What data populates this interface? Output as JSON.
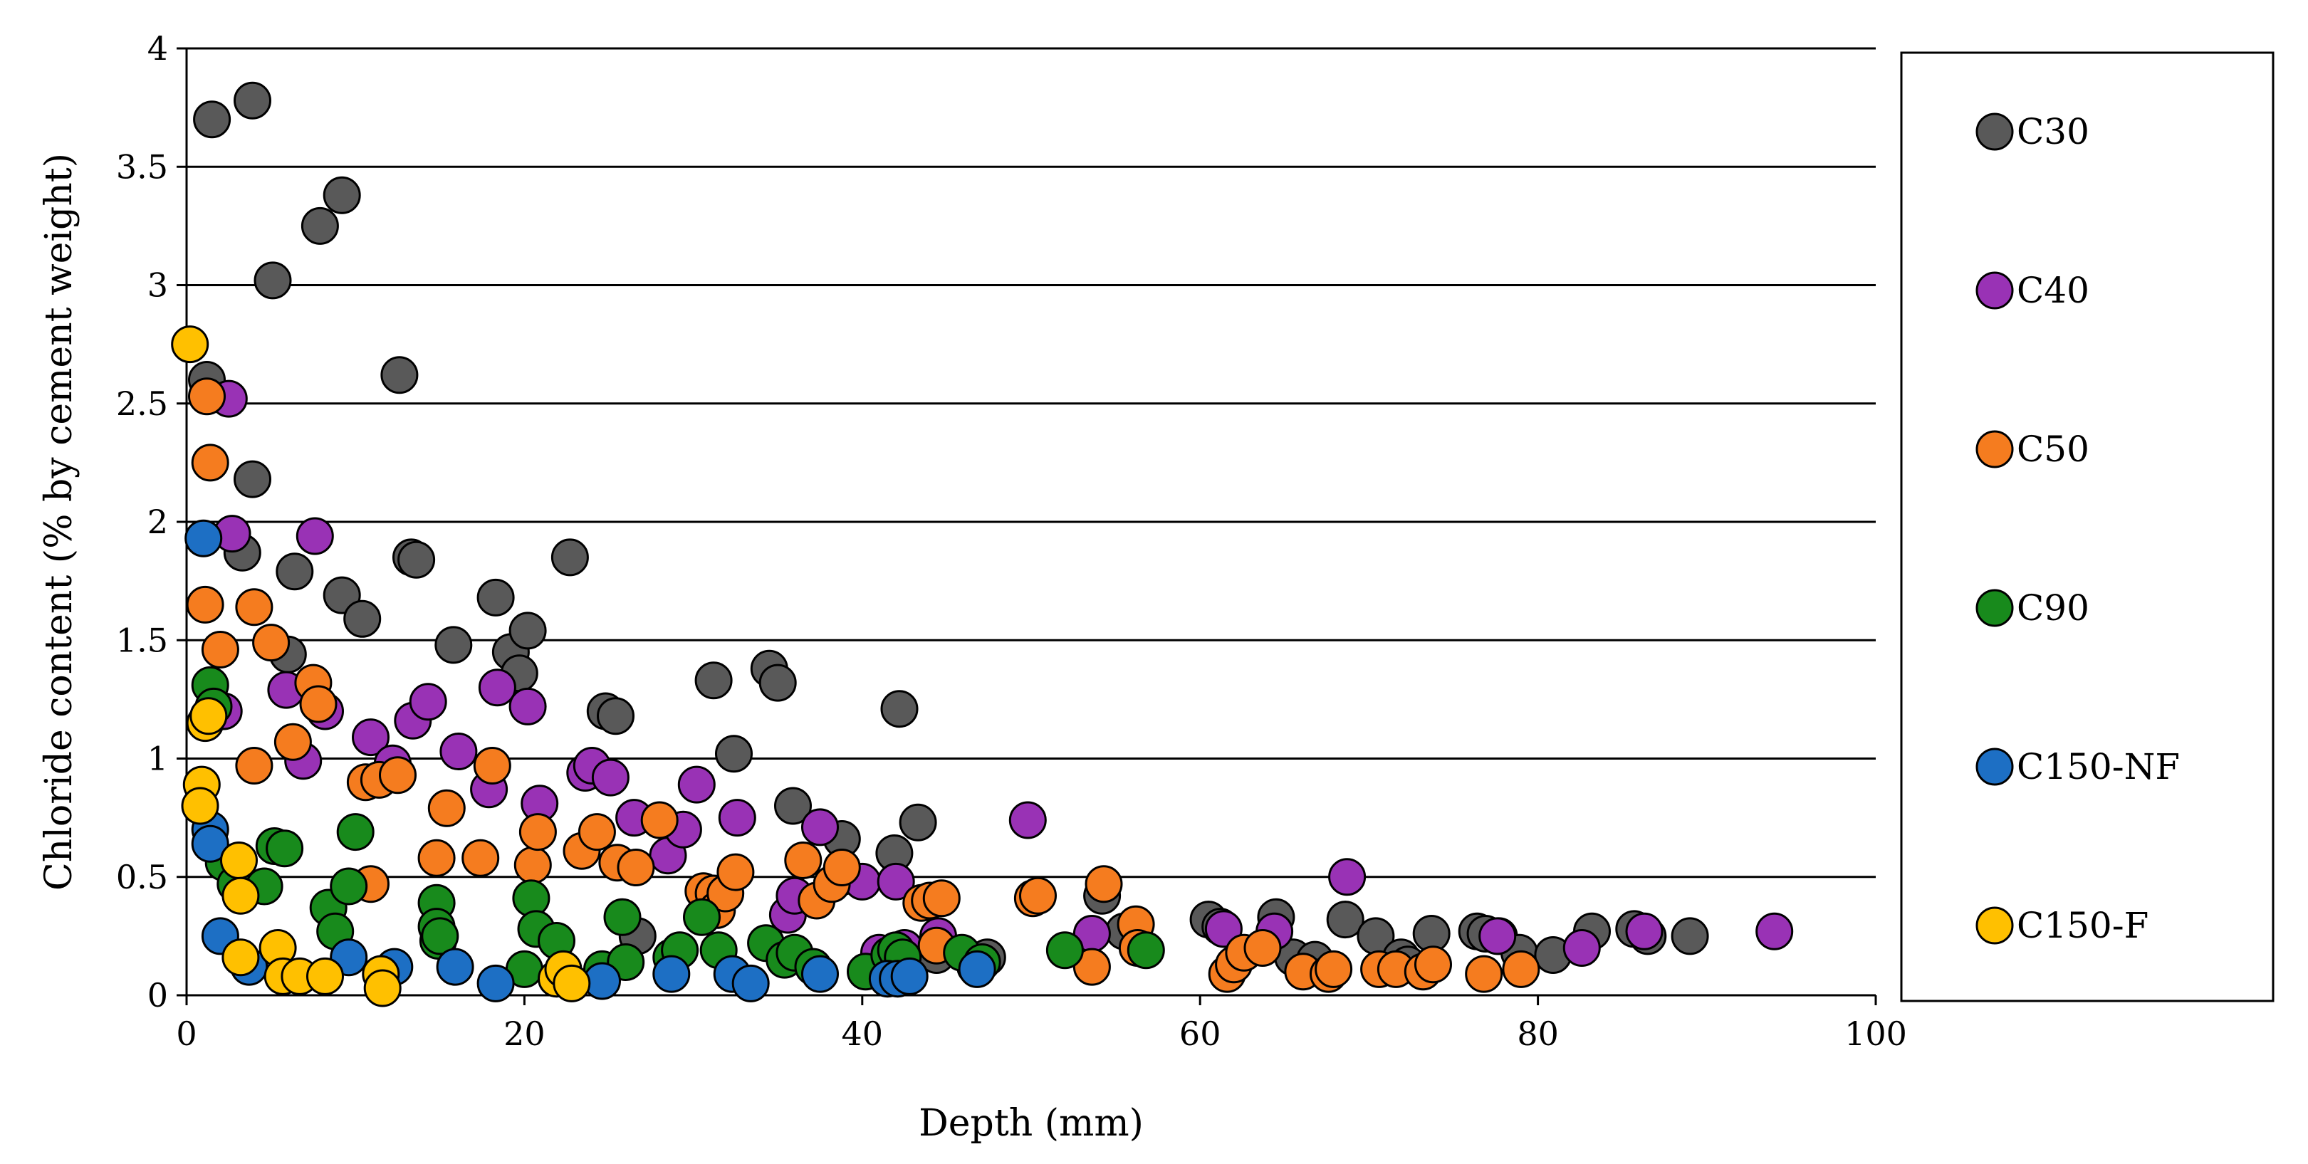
{
  "chart_data": {
    "type": "scatter",
    "title": "",
    "xlabel": "Depth (mm)",
    "ylabel": "Chloride content (% by cement weight)",
    "xlim": [
      0,
      100
    ],
    "ylim": [
      0,
      4
    ],
    "x_ticks": [
      0,
      20,
      40,
      60,
      80,
      100
    ],
    "x_tick_labels": [
      "0",
      "20",
      "40",
      "60",
      "80",
      "100"
    ],
    "y_ticks": [
      0,
      0.5,
      1,
      1.5,
      2,
      2.5,
      3,
      3.5,
      4
    ],
    "y_tick_labels": [
      "0",
      "0.5",
      "1",
      "1.5",
      "2",
      "2.5",
      "3",
      "3.5",
      "4"
    ],
    "grid": "horizontal",
    "legend_position": "right",
    "series": [
      {
        "name": "C30",
        "color": "#595959",
        "points": [
          [
            1.2,
            2.6
          ],
          [
            1.5,
            3.7
          ],
          [
            3.9,
            3.78
          ],
          [
            5.1,
            3.02
          ],
          [
            7.9,
            3.25
          ],
          [
            9.2,
            3.38
          ],
          [
            12.6,
            2.62
          ],
          [
            3.9,
            2.18
          ],
          [
            3.3,
            1.87
          ],
          [
            6.4,
            1.79
          ],
          [
            6.0,
            1.44
          ],
          [
            9.2,
            1.69
          ],
          [
            10.4,
            1.59
          ],
          [
            13.3,
            1.85
          ],
          [
            13.6,
            1.84
          ],
          [
            15.8,
            1.48
          ],
          [
            18.3,
            1.68
          ],
          [
            19.2,
            1.45
          ],
          [
            19.7,
            1.36
          ],
          [
            20.2,
            1.54
          ],
          [
            22.7,
            1.85
          ],
          [
            24.8,
            1.2
          ],
          [
            25.4,
            1.18
          ],
          [
            31.2,
            1.33
          ],
          [
            32.4,
            1.02
          ],
          [
            34.5,
            1.38
          ],
          [
            35.0,
            1.32
          ],
          [
            35.9,
            0.8
          ],
          [
            38.8,
            0.66
          ],
          [
            42.2,
            1.21
          ],
          [
            41.9,
            0.6
          ],
          [
            43.3,
            0.73
          ],
          [
            26.7,
            0.25
          ],
          [
            44.4,
            0.17
          ],
          [
            46.7,
            0.12
          ],
          [
            47.4,
            0.16
          ],
          [
            54.2,
            0.42
          ],
          [
            55.5,
            0.27
          ],
          [
            60.5,
            0.32
          ],
          [
            61.2,
            0.29
          ],
          [
            64.5,
            0.33
          ],
          [
            65.5,
            0.16
          ],
          [
            66.8,
            0.15
          ],
          [
            68.6,
            0.32
          ],
          [
            70.4,
            0.25
          ],
          [
            71.9,
            0.16
          ],
          [
            72.3,
            0.13
          ],
          [
            73.7,
            0.26
          ],
          [
            76.4,
            0.27
          ],
          [
            76.9,
            0.26
          ],
          [
            77.7,
            0.25
          ],
          [
            78.9,
            0.18
          ],
          [
            80.9,
            0.17
          ],
          [
            83.2,
            0.27
          ],
          [
            85.7,
            0.28
          ],
          [
            86.5,
            0.25
          ],
          [
            89.0,
            0.25
          ]
        ]
      },
      {
        "name": "C40",
        "color": "#9932b5",
        "points": [
          [
            2.5,
            2.52
          ],
          [
            2.7,
            1.95
          ],
          [
            7.6,
            1.94
          ],
          [
            2.2,
            1.2
          ],
          [
            5.9,
            1.29
          ],
          [
            6.9,
            0.99
          ],
          [
            8.2,
            1.2
          ],
          [
            10.9,
            1.09
          ],
          [
            12.2,
            0.98
          ],
          [
            13.4,
            1.16
          ],
          [
            14.3,
            1.24
          ],
          [
            16.1,
            1.03
          ],
          [
            17.9,
            0.87
          ],
          [
            18.4,
            1.3
          ],
          [
            20.2,
            1.22
          ],
          [
            20.9,
            0.81
          ],
          [
            23.6,
            0.94
          ],
          [
            24.0,
            0.97
          ],
          [
            25.1,
            0.92
          ],
          [
            26.5,
            0.75
          ],
          [
            28.5,
            0.59
          ],
          [
            29.4,
            0.7
          ],
          [
            30.2,
            0.89
          ],
          [
            32.6,
            0.75
          ],
          [
            35.6,
            0.34
          ],
          [
            36.0,
            0.42
          ],
          [
            37.5,
            0.71
          ],
          [
            38.8,
            0.5
          ],
          [
            40.0,
            0.48
          ],
          [
            41.0,
            0.18
          ],
          [
            42.0,
            0.48
          ],
          [
            42.5,
            0.2
          ],
          [
            44.5,
            0.25
          ],
          [
            49.8,
            0.74
          ],
          [
            53.6,
            0.26
          ],
          [
            61.4,
            0.28
          ],
          [
            64.4,
            0.27
          ],
          [
            68.7,
            0.5
          ],
          [
            77.6,
            0.25
          ],
          [
            82.6,
            0.2
          ],
          [
            86.3,
            0.27
          ],
          [
            94.0,
            0.27
          ]
        ]
      },
      {
        "name": "C50",
        "color": "#f57c1f",
        "points": [
          [
            1.2,
            2.53
          ],
          [
            1.4,
            2.25
          ],
          [
            1.1,
            1.65
          ],
          [
            2.0,
            1.46
          ],
          [
            4.0,
            1.64
          ],
          [
            5.0,
            1.49
          ],
          [
            7.5,
            1.32
          ],
          [
            7.8,
            1.23
          ],
          [
            6.3,
            1.07
          ],
          [
            4.0,
            0.97
          ],
          [
            10.6,
            0.9
          ],
          [
            11.4,
            0.91
          ],
          [
            12.5,
            0.93
          ],
          [
            10.9,
            0.47
          ],
          [
            15.4,
            0.79
          ],
          [
            18.1,
            0.97
          ],
          [
            14.8,
            0.58
          ],
          [
            17.4,
            0.58
          ],
          [
            20.5,
            0.55
          ],
          [
            20.8,
            0.69
          ],
          [
            23.4,
            0.61
          ],
          [
            24.3,
            0.69
          ],
          [
            25.5,
            0.56
          ],
          [
            26.6,
            0.54
          ],
          [
            28.0,
            0.74
          ],
          [
            30.6,
            0.44
          ],
          [
            31.2,
            0.43
          ],
          [
            31.4,
            0.36
          ],
          [
            31.9,
            0.43
          ],
          [
            32.5,
            0.52
          ],
          [
            36.5,
            0.57
          ],
          [
            37.3,
            0.4
          ],
          [
            38.2,
            0.47
          ],
          [
            38.8,
            0.54
          ],
          [
            43.5,
            0.39
          ],
          [
            44.0,
            0.4
          ],
          [
            44.7,
            0.41
          ],
          [
            44.4,
            0.21
          ],
          [
            50.1,
            0.41
          ],
          [
            50.4,
            0.42
          ],
          [
            53.6,
            0.12
          ],
          [
            54.3,
            0.47
          ],
          [
            56.2,
            0.3
          ],
          [
            56.3,
            0.2
          ],
          [
            61.6,
            0.09
          ],
          [
            62.0,
            0.13
          ],
          [
            62.6,
            0.18
          ],
          [
            63.7,
            0.2
          ],
          [
            66.1,
            0.1
          ],
          [
            67.6,
            0.09
          ],
          [
            67.9,
            0.11
          ],
          [
            70.6,
            0.11
          ],
          [
            71.6,
            0.11
          ],
          [
            73.2,
            0.1
          ],
          [
            73.8,
            0.13
          ],
          [
            76.8,
            0.09
          ],
          [
            79.0,
            0.11
          ]
        ]
      },
      {
        "name": "C90",
        "color": "#188a1c",
        "points": [
          [
            1.4,
            1.31
          ],
          [
            1.6,
            1.22
          ],
          [
            2.2,
            0.56
          ],
          [
            2.9,
            0.47
          ],
          [
            4.6,
            0.46
          ],
          [
            5.2,
            0.63
          ],
          [
            5.8,
            0.62
          ],
          [
            8.4,
            0.37
          ],
          [
            8.8,
            0.27
          ],
          [
            9.6,
            0.46
          ],
          [
            10.0,
            0.69
          ],
          [
            14.8,
            0.39
          ],
          [
            14.8,
            0.29
          ],
          [
            14.9,
            0.23
          ],
          [
            15.0,
            0.25
          ],
          [
            20.0,
            0.11
          ],
          [
            20.4,
            0.41
          ],
          [
            20.7,
            0.28
          ],
          [
            21.9,
            0.23
          ],
          [
            24.6,
            0.11
          ],
          [
            25.8,
            0.33
          ],
          [
            26.0,
            0.14
          ],
          [
            28.7,
            0.16
          ],
          [
            29.2,
            0.19
          ],
          [
            30.5,
            0.33
          ],
          [
            31.5,
            0.19
          ],
          [
            34.3,
            0.22
          ],
          [
            35.4,
            0.15
          ],
          [
            36.0,
            0.18
          ],
          [
            37.1,
            0.12
          ],
          [
            40.2,
            0.1
          ],
          [
            41.6,
            0.17
          ],
          [
            42.0,
            0.19
          ],
          [
            42.4,
            0.16
          ],
          [
            45.9,
            0.18
          ],
          [
            47.1,
            0.14
          ],
          [
            52.0,
            0.19
          ],
          [
            56.8,
            0.19
          ]
        ]
      },
      {
        "name": "C150-NF",
        "color": "#1d6fc4",
        "points": [
          [
            1.0,
            1.93
          ],
          [
            1.4,
            0.7
          ],
          [
            1.4,
            0.64
          ],
          [
            2.0,
            0.25
          ],
          [
            3.7,
            0.12
          ],
          [
            9.6,
            0.16
          ],
          [
            12.3,
            0.12
          ],
          [
            15.9,
            0.12
          ],
          [
            18.3,
            0.05
          ],
          [
            24.6,
            0.06
          ],
          [
            28.7,
            0.09
          ],
          [
            32.3,
            0.09
          ],
          [
            33.4,
            0.05
          ],
          [
            37.5,
            0.09
          ],
          [
            41.5,
            0.07
          ],
          [
            42.1,
            0.07
          ],
          [
            42.8,
            0.08
          ],
          [
            46.8,
            0.11
          ]
        ]
      },
      {
        "name": "C150-F",
        "color": "#ffc000",
        "points": [
          [
            0.2,
            2.75
          ],
          [
            1.1,
            1.15
          ],
          [
            1.3,
            1.18
          ],
          [
            0.9,
            0.89
          ],
          [
            0.8,
            0.8
          ],
          [
            3.1,
            0.57
          ],
          [
            3.2,
            0.42
          ],
          [
            3.2,
            0.16
          ],
          [
            5.4,
            0.2
          ],
          [
            5.7,
            0.08
          ],
          [
            6.7,
            0.08
          ],
          [
            8.2,
            0.08
          ],
          [
            11.5,
            0.09
          ],
          [
            11.6,
            0.03
          ],
          [
            21.9,
            0.07
          ],
          [
            22.3,
            0.11
          ],
          [
            22.8,
            0.05
          ]
        ]
      }
    ]
  }
}
